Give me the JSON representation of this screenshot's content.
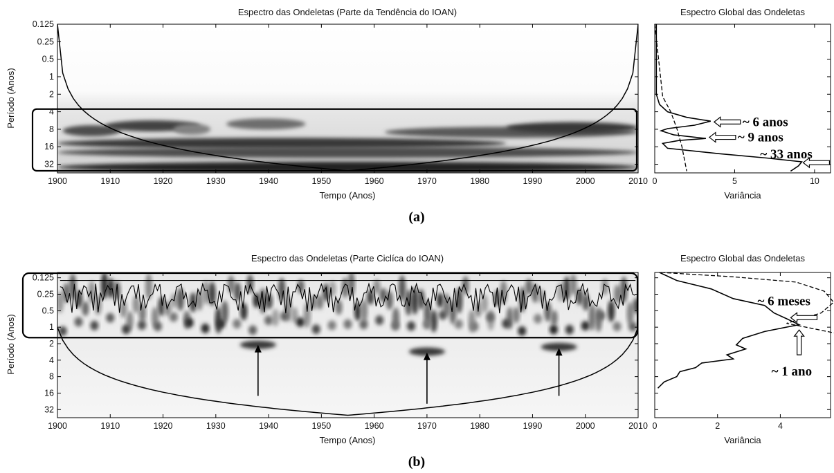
{
  "chart_data": [
    {
      "type": "heatmap",
      "panel": "(a)",
      "title": "Espectro das Ondeletas (Parte da Tendência do IOAN)",
      "xlabel": "Tempo (Anos)",
      "ylabel": "Período (Anos)",
      "x_ticks": [
        1900,
        1910,
        1920,
        1930,
        1940,
        1950,
        1960,
        1970,
        1980,
        1990,
        2000,
        2010
      ],
      "y_ticks": [
        "0.125",
        "0.25",
        "0.5",
        "1",
        "2",
        "4",
        "8",
        "16",
        "32"
      ],
      "xlim": [
        1900,
        2010
      ],
      "y_scale": "log2",
      "ylim": [
        0.125,
        45
      ],
      "highlight_band": [
        3.6,
        45
      ],
      "bands": [
        {
          "from": 1901,
          "to": 1912,
          "period": 8.5,
          "intensity": 0.75
        },
        {
          "from": 1909,
          "to": 1927,
          "period": 7,
          "intensity": 0.8
        },
        {
          "from": 1922,
          "to": 1929,
          "period": 8,
          "intensity": 0.5
        },
        {
          "from": 1932,
          "to": 1947,
          "period": 6.5,
          "intensity": 0.6
        },
        {
          "from": 1962,
          "to": 2010,
          "period": 9,
          "intensity": 0.7
        },
        {
          "from": 1985,
          "to": 2010,
          "period": 7.5,
          "intensity": 0.85
        },
        {
          "from": 1900,
          "to": 1985,
          "period": 14,
          "intensity": 0.85
        },
        {
          "from": 1900,
          "to": 2010,
          "period": 20,
          "intensity": 0.75
        },
        {
          "from": 1900,
          "to": 2010,
          "period": 36,
          "intensity": 0.95
        }
      ]
    },
    {
      "type": "line",
      "panel": "(a)",
      "title": "Espectro Global das Ondeletas",
      "xlabel": "Variância",
      "x_ticks": [
        0,
        5,
        10
      ],
      "xlim": [
        0,
        11
      ],
      "series": [
        {
          "style": "solid",
          "points": [
            [
              0.1,
              0.125
            ],
            [
              0.1,
              2
            ],
            [
              0.3,
              3
            ],
            [
              0.8,
              4
            ],
            [
              2.0,
              5
            ],
            [
              3.5,
              5.8
            ],
            [
              2.5,
              6.8
            ],
            [
              0.8,
              7.8
            ],
            [
              0.4,
              8.5
            ],
            [
              1.2,
              10
            ],
            [
              3.2,
              11.5
            ],
            [
              1.5,
              12.5
            ],
            [
              0.5,
              14
            ],
            [
              0.8,
              17
            ],
            [
              4,
              21
            ],
            [
              7,
              25
            ],
            [
              9.2,
              29
            ],
            [
              9,
              34
            ],
            [
              8.5,
              42
            ]
          ]
        },
        {
          "style": "dashed",
          "points": [
            [
              0,
              0.125
            ],
            [
              0.5,
              2.2
            ],
            [
              1.0,
              4
            ],
            [
              1.4,
              8
            ],
            [
              1.7,
              16
            ],
            [
              2.0,
              42
            ]
          ]
        }
      ],
      "annotations": [
        {
          "text": "~ 6 anos",
          "at": [
            3.5,
            6
          ]
        },
        {
          "text": "~ 9 anos",
          "at": [
            3.2,
            11
          ]
        },
        {
          "text": "~ 33 anos",
          "at": [
            9.2,
            30
          ]
        }
      ]
    },
    {
      "type": "heatmap",
      "panel": "(b)",
      "title": "Espectro das Ondeletas (Parte Ciclíca do IOAN)",
      "xlabel": "Tempo (Anos)",
      "ylabel": "Período (Anos)",
      "x_ticks": [
        1900,
        1910,
        1920,
        1930,
        1940,
        1950,
        1960,
        1970,
        1980,
        1990,
        2000,
        2010
      ],
      "y_ticks": [
        "0.125",
        "0.25",
        "0.5",
        "1",
        "2",
        "4",
        "8",
        "16",
        "32"
      ],
      "xlim": [
        1900,
        2010
      ],
      "y_scale": "log2",
      "ylim": [
        0.1,
        45
      ],
      "highlight_band": [
        0.1,
        1.55
      ],
      "blobs": [
        {
          "t": 1938,
          "period": 2.1,
          "intensity": 0.85
        },
        {
          "t": 1970,
          "period": 2.8,
          "intensity": 0.85
        },
        {
          "t": 1995,
          "period": 2.3,
          "intensity": 0.85
        }
      ],
      "arrows": [
        {
          "t": 1938,
          "from_period": 18,
          "to_period": 2.1
        },
        {
          "t": 1970,
          "from_period": 25,
          "to_period": 2.9
        },
        {
          "t": 1995,
          "from_period": 18,
          "to_period": 2.4
        }
      ]
    },
    {
      "type": "line",
      "panel": "(b)",
      "title": "Espectro Global das Ondeletas",
      "xlabel": "Variância",
      "x_ticks": [
        0,
        2,
        4
      ],
      "xlim": [
        0,
        5.6
      ],
      "series": [
        {
          "style": "solid",
          "points": [
            [
              0.15,
              0.1
            ],
            [
              0.7,
              0.14
            ],
            [
              1.8,
              0.2
            ],
            [
              2.5,
              0.3
            ],
            [
              3.5,
              0.4
            ],
            [
              3.8,
              0.55
            ],
            [
              4.2,
              0.7
            ],
            [
              4.6,
              0.9
            ],
            [
              3.5,
              1.2
            ],
            [
              2.8,
              1.6
            ],
            [
              2.6,
              2.1
            ],
            [
              2.9,
              2.5
            ],
            [
              2.3,
              3.2
            ],
            [
              2.5,
              3.8
            ],
            [
              1.5,
              4.5
            ],
            [
              1.3,
              5.5
            ],
            [
              0.8,
              6.5
            ],
            [
              0.7,
              8
            ],
            [
              0.3,
              10
            ],
            [
              0.1,
              13
            ]
          ]
        },
        {
          "style": "dashed",
          "points": [
            [
              0.2,
              0.1
            ],
            [
              2.5,
              0.12
            ],
            [
              4.5,
              0.15
            ],
            [
              5.4,
              0.22
            ],
            [
              5.7,
              0.35
            ],
            [
              5.3,
              0.55
            ],
            [
              4.5,
              0.75
            ],
            [
              4.2,
              0.85
            ],
            [
              5.0,
              1.05
            ],
            [
              5.8,
              1.3
            ]
          ]
        }
      ],
      "annotations": [
        {
          "text": "~ 6 meses",
          "at": [
            4.2,
            0.5
          ]
        },
        {
          "text": "~ 1 ano",
          "at": [
            4.6,
            1.0
          ]
        }
      ]
    }
  ],
  "labels": {
    "panel_a": "(a)",
    "panel_b": "(b)"
  }
}
